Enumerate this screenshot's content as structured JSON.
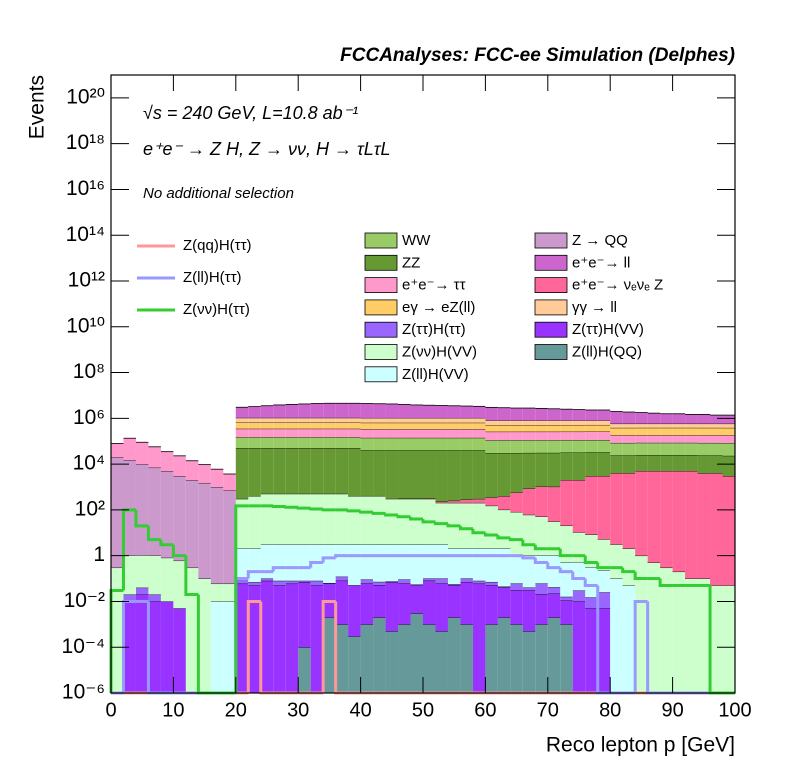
{
  "chart_data": {
    "type": "histogram",
    "stacked": true,
    "logy": true,
    "title": "FCCAnalyses: FCC-ee Simulation (Delphes)",
    "annotations": [
      "√s = 240 GeV, L=10.8 ab⁻¹",
      "e⁺e⁻ → Z H, Z → νν, H → τLτL",
      "No additional selection"
    ],
    "xlabel": "Reco lepton p [GeV]",
    "ylabel": "Events",
    "xlim": [
      0,
      100
    ],
    "xticks": [
      0,
      10,
      20,
      30,
      40,
      50,
      60,
      70,
      80,
      90,
      100
    ],
    "ylim": [
      1e-06,
      1e+21
    ],
    "yticks": [
      {
        "value": 1e-06,
        "label": "10⁻⁶"
      },
      {
        "value": 0.0001,
        "label": "10⁻⁴"
      },
      {
        "value": 0.01,
        "label": "10⁻²"
      },
      1,
      {
        "value": 100,
        "label": "10²"
      },
      {
        "value": 10000.0,
        "label": "10⁴"
      },
      {
        "value": 1000000.0,
        "label": "10⁶"
      },
      {
        "value": 100000000.0,
        "label": "10⁸"
      },
      {
        "value": 10000000000.0,
        "label": "10¹⁰"
      },
      {
        "value": 1000000000000.0,
        "label": "10¹²"
      },
      {
        "value": 100000000000000.0,
        "label": "10¹⁴"
      },
      {
        "value": 1e+16,
        "label": "10¹⁶"
      },
      {
        "value": 1e+18,
        "label": "10¹⁸"
      },
      {
        "value": 1e+20,
        "label": "10²⁰"
      }
    ],
    "bins": [
      0,
      2,
      4,
      6,
      8,
      10,
      12,
      14,
      16,
      18,
      20,
      22,
      24,
      26,
      28,
      30,
      32,
      34,
      36,
      38,
      40,
      42,
      44,
      46,
      48,
      50,
      52,
      54,
      56,
      58,
      60,
      62,
      64,
      66,
      68,
      70,
      72,
      74,
      76,
      78,
      80,
      82,
      84,
      86,
      88,
      90,
      92,
      94,
      96,
      98,
      100
    ],
    "series": [
      {
        "name": "WW",
        "color": "#99cc66",
        "values": [
          0,
          0,
          0,
          0,
          0,
          0,
          0,
          0,
          0,
          0,
          100000.0,
          100000.0,
          100000.0,
          100000.0,
          100000.0,
          100000.0,
          100000.0,
          100000.0,
          100000.0,
          100000.0,
          100000.0,
          100000.0,
          100000.0,
          100000.0,
          100000.0,
          100000.0,
          100000.0,
          100000.0,
          100000.0,
          100000.0,
          80000.0,
          80000.0,
          80000.0,
          80000.0,
          80000.0,
          80000.0,
          80000.0,
          80000.0,
          80000.0,
          80000.0,
          60000.0,
          60000.0,
          60000.0,
          60000.0,
          60000.0,
          60000.0,
          60000.0,
          60000.0,
          60000.0,
          60000.0
        ]
      },
      {
        "name": "ZZ",
        "color": "#669933",
        "values": [
          0,
          0,
          0,
          0,
          0,
          0,
          0,
          0,
          0,
          0,
          50000.0,
          50000.0,
          50000.0,
          50000.0,
          50000.0,
          50000.0,
          50000.0,
          50000.0,
          50000.0,
          50000.0,
          40000.0,
          40000.0,
          40000.0,
          40000.0,
          40000.0,
          40000.0,
          40000.0,
          40000.0,
          40000.0,
          40000.0,
          30000.0,
          30000.0,
          30000.0,
          30000.0,
          30000.0,
          30000.0,
          30000.0,
          30000.0,
          30000.0,
          30000.0,
          20000.0,
          20000.0,
          20000.0,
          20000.0,
          20000.0,
          20000.0,
          20000.0,
          20000.0,
          20000.0,
          20000.0
        ]
      },
      {
        "name": "e⁺e⁻→ ττ",
        "color": "#ff99cc",
        "values": [
          60000.0,
          120000.0,
          80000.0,
          50000.0,
          30000.0,
          20000.0,
          12000.0,
          8000.0,
          5000.0,
          3000.0,
          200000.0,
          200000.0,
          200000.0,
          200000.0,
          200000.0,
          200000.0,
          200000.0,
          200000.0,
          200000.0,
          200000.0,
          200000.0,
          200000.0,
          200000.0,
          200000.0,
          200000.0,
          200000.0,
          200000.0,
          200000.0,
          200000.0,
          200000.0,
          150000.0,
          150000.0,
          150000.0,
          150000.0,
          150000.0,
          150000.0,
          150000.0,
          150000.0,
          150000.0,
          150000.0,
          100000.0,
          100000.0,
          100000.0,
          100000.0,
          100000.0,
          100000.0,
          100000.0,
          100000.0,
          100000.0,
          100000.0
        ]
      },
      {
        "name": "eγ → eZ(ll)",
        "color": "#ffcc66",
        "values": [
          0,
          0,
          0,
          0,
          0,
          0,
          0,
          0,
          0,
          0,
          300000.0,
          300000.0,
          300000.0,
          300000.0,
          300000.0,
          300000.0,
          300000.0,
          300000.0,
          300000.0,
          300000.0,
          300000.0,
          300000.0,
          300000.0,
          300000.0,
          300000.0,
          300000.0,
          300000.0,
          300000.0,
          300000.0,
          300000.0,
          250000.0,
          250000.0,
          250000.0,
          250000.0,
          250000.0,
          250000.0,
          250000.0,
          250000.0,
          250000.0,
          250000.0,
          200000.0,
          200000.0,
          200000.0,
          200000.0,
          200000.0,
          200000.0,
          200000.0,
          200000.0,
          200000.0,
          200000.0
        ]
      },
      {
        "name": "Z(ττ)H(ττ)",
        "color": "#9966ff",
        "values": [
          0,
          0.01,
          0.02,
          0.01,
          0,
          0,
          0,
          0,
          0,
          0,
          0.03,
          0.02,
          0.02,
          0.03,
          0.02,
          0.01,
          0.03,
          0.002,
          0.04,
          0.001,
          0.03,
          0.02,
          0.005,
          0.03,
          0.002,
          0.02,
          0.04,
          0.005,
          0.03,
          0.02,
          0.02,
          0.003,
          0.03,
          0.01,
          0.04,
          0.02,
          0.005,
          0.02,
          0.01,
          0.02,
          0,
          0,
          0,
          0,
          0,
          0,
          0,
          0,
          0,
          0
        ]
      },
      {
        "name": "Z(νν)H(VV)",
        "color": "#ccffcc",
        "values": [
          0.3,
          1,
          1,
          1,
          0.8,
          0.6,
          0.3,
          0.1,
          0.05,
          0.05,
          300,
          400,
          500,
          500,
          500,
          500,
          500,
          500,
          500,
          400,
          400,
          400,
          300,
          300,
          300,
          300,
          200,
          200,
          200,
          200,
          150,
          100,
          80,
          60,
          50,
          30,
          20,
          10,
          8,
          5,
          3,
          2,
          1,
          0.5,
          0.3,
          0.2,
          0.1,
          0.1,
          0.05,
          0.05
        ]
      },
      {
        "name": "Z(ll)H(VV)",
        "color": "#ccffff",
        "values": [
          0,
          0,
          0,
          0,
          0,
          0,
          0,
          0,
          0.01,
          0.01,
          2,
          2,
          3,
          3,
          3,
          3,
          3,
          3,
          3,
          3,
          3,
          3,
          3,
          3,
          3,
          3,
          3,
          2,
          2,
          2,
          2,
          2,
          1,
          1,
          1,
          1,
          0.5,
          0.5,
          0.3,
          0.2,
          0.1,
          0.05,
          0,
          0,
          0,
          0,
          0,
          0,
          0,
          0
        ]
      },
      {
        "name": "Z → QQ",
        "color": "#cc99cc",
        "values": [
          20000.0,
          15000.0,
          10000.0,
          7000.0,
          5000.0,
          3000.0,
          2000.0,
          1500.0,
          1000.0,
          700,
          0,
          0,
          0,
          0,
          0,
          0,
          0,
          0,
          0,
          0,
          0,
          0,
          0,
          0,
          0,
          0,
          0,
          0,
          0,
          0,
          0,
          0,
          0,
          0,
          0,
          0,
          0,
          0,
          0,
          0,
          0,
          0,
          0,
          0,
          0,
          0,
          0,
          0,
          0,
          0
        ]
      },
      {
        "name": "e⁺e⁻→ ll",
        "color": "#cc66cc",
        "values": [
          0,
          0,
          0,
          0,
          0,
          0,
          0,
          0,
          0,
          0,
          2000000.0,
          2200000.0,
          2500000.0,
          2800000.0,
          3000000.0,
          3200000.0,
          3400000.0,
          3500000.0,
          3500000.0,
          3500000.0,
          3400000.0,
          3300000.0,
          3200000.0,
          3000000.0,
          2800000.0,
          2700000.0,
          2600000.0,
          2500000.0,
          2400000.0,
          2300000.0,
          2200000.0,
          2100000.0,
          2000000.0,
          2000000.0,
          1900000.0,
          1800000.0,
          1700000.0,
          1600000.0,
          1500000.0,
          1500000.0,
          1400000.0,
          1300000.0,
          1200000.0,
          1100000.0,
          1000000.0,
          1000000.0,
          900000.0,
          900000.0,
          800000.0,
          800000.0
        ]
      },
      {
        "name": "e⁺e⁻→ νₑνₑ Z",
        "color": "#ff6699",
        "values": [
          0,
          0,
          0,
          0,
          0,
          0,
          0,
          0,
          0,
          0,
          1,
          1,
          1,
          1,
          1,
          2,
          2,
          2,
          3,
          3,
          5,
          5,
          8,
          10,
          10,
          20,
          30,
          50,
          80,
          100,
          200,
          300,
          500,
          800,
          1000.0,
          1000.0,
          2000.0,
          2000.0,
          3000.0,
          3000.0,
          4000.0,
          4000.0,
          5000.0,
          5000.0,
          5000.0,
          5000.0,
          5000.0,
          4000.0,
          4000.0,
          3000.0
        ]
      },
      {
        "name": "γγ → ll",
        "color": "#ffcc99",
        "values": [
          0,
          0,
          0,
          0,
          0,
          0,
          0,
          0,
          0,
          0,
          400000.0,
          400000.0,
          400000.0,
          400000.0,
          400000.0,
          400000.0,
          400000.0,
          400000.0,
          400000.0,
          400000.0,
          400000.0,
          400000.0,
          400000.0,
          400000.0,
          400000.0,
          400000.0,
          400000.0,
          400000.0,
          400000.0,
          400000.0,
          300000.0,
          300000.0,
          300000.0,
          300000.0,
          300000.0,
          300000.0,
          300000.0,
          300000.0,
          300000.0,
          300000.0,
          200000.0,
          200000.0,
          200000.0,
          200000.0,
          200000.0,
          200000.0,
          200000.0,
          200000.0,
          200000.0,
          200000.0
        ]
      },
      {
        "name": "Z(ττ)H(VV)",
        "color": "#9933ff",
        "values": [
          0,
          0.01,
          0.02,
          0.01,
          0.01,
          0.005,
          0,
          0,
          0,
          0,
          0.06,
          0.05,
          0.08,
          0.05,
          0.06,
          0.07,
          0.05,
          0.06,
          0.08,
          0.05,
          0.06,
          0.05,
          0.07,
          0.06,
          0.05,
          0.08,
          0.06,
          0.05,
          0.07,
          0.06,
          0.05,
          0.04,
          0.03,
          0.03,
          0.02,
          0.02,
          0.01,
          0.01,
          0.005,
          0.005,
          0,
          0,
          0,
          0,
          0,
          0,
          0,
          0,
          0,
          0
        ]
      },
      {
        "name": "Z(ll)H(QQ)",
        "color": "#669999",
        "values": [
          0,
          0,
          0,
          0,
          0,
          0,
          0,
          0,
          0,
          0,
          0,
          0,
          0,
          0,
          0,
          0.0001,
          0,
          0.002,
          0.001,
          0.0003,
          0.001,
          0.002,
          0.0005,
          0.001,
          0.003,
          0.001,
          0.0005,
          0.002,
          0.001,
          0,
          0.001,
          0.002,
          0.001,
          0.0005,
          0.001,
          0.002,
          0.001,
          0,
          0,
          0,
          0,
          0,
          0,
          0,
          0,
          0,
          0,
          0,
          0,
          0
        ]
      },
      {
        "name": "Z(qq)H(ττ)",
        "color": "#ff9999",
        "style": "step",
        "values": [
          0,
          0,
          0,
          0,
          0,
          0,
          0,
          0,
          0,
          0,
          0,
          0.01,
          0,
          0,
          0,
          0,
          0,
          0.01,
          0,
          0,
          0,
          0,
          0,
          0,
          0,
          0,
          0,
          0,
          0,
          0,
          0,
          0,
          0,
          0,
          0,
          0,
          0,
          0,
          0,
          0,
          0,
          0,
          0,
          0,
          0,
          0,
          0,
          0,
          0,
          0
        ]
      },
      {
        "name": "Z(ll)H(ττ)",
        "color": "#9999ff",
        "style": "step",
        "values": [
          0,
          0.01,
          0.01,
          0,
          0,
          0,
          0,
          0,
          0,
          0,
          0.1,
          0.2,
          0.2,
          0.3,
          0.3,
          0.3,
          0.5,
          0.8,
          1,
          1,
          1,
          1,
          1,
          1,
          1,
          1,
          1,
          1,
          1,
          1,
          1,
          1,
          1,
          0.8,
          0.5,
          0.3,
          0.2,
          0.1,
          0.05,
          0,
          0,
          0,
          0.01,
          0,
          0,
          0,
          0,
          0,
          0,
          0
        ]
      },
      {
        "name": "Z(νν)H(ττ)",
        "color": "#33cc33",
        "style": "step",
        "values": [
          0.03,
          100,
          20,
          5,
          3,
          1,
          0.02,
          0,
          0,
          0,
          150,
          150,
          150,
          140,
          130,
          120,
          110,
          100,
          100,
          90,
          80,
          70,
          60,
          50,
          40,
          30,
          25,
          20,
          15,
          10,
          8,
          6,
          5,
          3,
          2,
          2,
          1,
          1,
          0.5,
          0.3,
          0.3,
          0.2,
          0.1,
          0.1,
          0.05,
          0.05,
          0.05,
          0.05,
          0,
          0
        ]
      }
    ]
  }
}
